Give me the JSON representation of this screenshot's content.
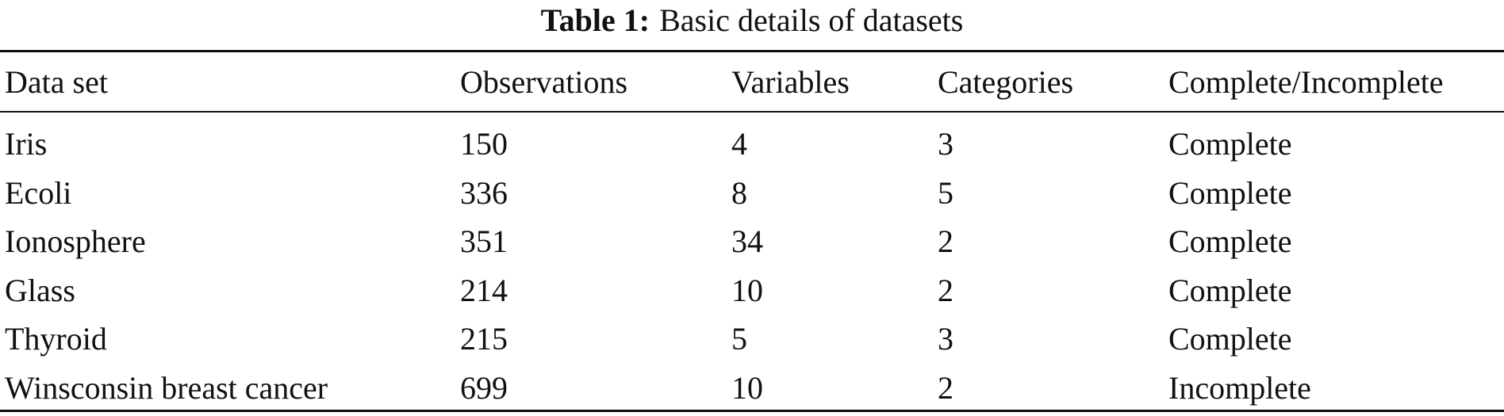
{
  "caption": {
    "label": "Table 1:",
    "text": "Basic details of datasets"
  },
  "table": {
    "header": [
      "Data set",
      "Observations",
      "Variables",
      "Categories",
      "Complete/Incomplete"
    ],
    "rows": [
      [
        "Iris",
        150,
        4,
        3,
        "Complete"
      ],
      [
        "Ecoli",
        336,
        8,
        5,
        "Complete"
      ],
      [
        "Ionosphere",
        351,
        34,
        2,
        "Complete"
      ],
      [
        "Glass",
        214,
        10,
        2,
        "Complete"
      ],
      [
        "Thyroid",
        215,
        5,
        3,
        "Complete"
      ],
      [
        "Winsconsin breast cancer",
        699,
        10,
        2,
        "Incomplete"
      ]
    ]
  }
}
